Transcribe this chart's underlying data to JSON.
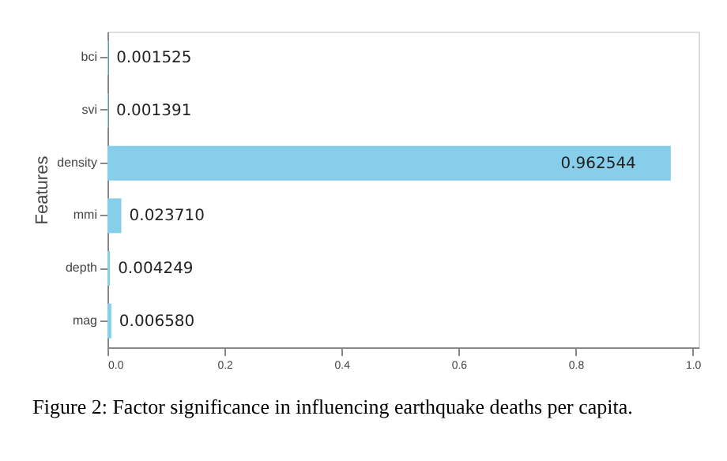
{
  "chart_data": {
    "type": "bar",
    "orientation": "horizontal",
    "ylabel": "Features",
    "categories": [
      "bci",
      "svi",
      "density",
      "mmi",
      "depth",
      "mag"
    ],
    "values": [
      0.001525,
      0.001391,
      0.962544,
      0.02371,
      0.004249,
      0.00658
    ],
    "value_labels": [
      "0.001525",
      "0.001391",
      "0.962544",
      "0.023710",
      "0.004249",
      "0.006580"
    ],
    "color": "#87ceeb",
    "xlim": [
      0,
      1.01
    ],
    "xticks": [
      {
        "value": 0,
        "label": "0.0"
      },
      {
        "value": 0.2,
        "label": "0.2"
      },
      {
        "value": 0.4,
        "label": "0.4"
      },
      {
        "value": 0.6,
        "label": "0.6"
      },
      {
        "value": 0.8,
        "label": "0.8"
      },
      {
        "value": 1,
        "label": "1.0"
      }
    ],
    "grid": false,
    "annotations": [
      "Figure 2: Factor significance in influencing earthquake deaths per capita."
    ]
  }
}
